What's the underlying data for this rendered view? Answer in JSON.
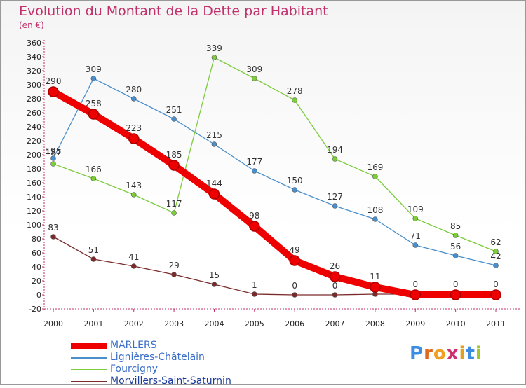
{
  "chart_data": {
    "type": "line",
    "title": "Evolution du Montant de la Dette par Habitant",
    "subtitle": "(en €)",
    "x": [
      2000,
      2001,
      2002,
      2003,
      2004,
      2005,
      2006,
      2007,
      2008,
      2009,
      2010,
      2011
    ],
    "ylim": [
      -20,
      360
    ],
    "yticks": [
      -20,
      0,
      20,
      40,
      60,
      80,
      100,
      120,
      140,
      160,
      180,
      200,
      220,
      240,
      260,
      280,
      300,
      320,
      340,
      360
    ],
    "grid": false,
    "legend_position": "bottom-left",
    "series": [
      {
        "name": "MARLERS",
        "color": "#ee0000",
        "values": [
          290,
          258,
          223,
          185,
          144,
          98,
          49,
          26,
          11,
          0,
          0,
          0
        ],
        "labels": [
          "290",
          "258",
          "223",
          "185",
          "144",
          "98",
          "49",
          "26",
          "11",
          "0",
          "0",
          "0"
        ]
      },
      {
        "name": "Lignières-Châtelain",
        "color": "#4a8fcb",
        "values": [
          195,
          309,
          280,
          251,
          215,
          177,
          150,
          127,
          108,
          71,
          56,
          42
        ],
        "labels": [
          "195",
          "309",
          "280",
          "251",
          "215",
          "177",
          "150",
          "127",
          "108",
          "71",
          "56",
          "42"
        ]
      },
      {
        "name": "Fourcigny",
        "color": "#7ccc3c",
        "values": [
          187,
          166,
          143,
          117,
          339,
          309,
          278,
          194,
          169,
          109,
          85,
          62
        ],
        "labels": [
          "187",
          "166",
          "143",
          "117",
          "339",
          "309",
          "278",
          "194",
          "169",
          "109",
          "85",
          "62"
        ]
      },
      {
        "name": "Morvillers-Saint-Saturnin",
        "color": "#7a2a2a",
        "values": [
          83,
          51,
          41,
          29,
          15,
          1,
          0,
          0,
          1,
          1,
          1,
          1
        ],
        "labels": [
          "83",
          "51",
          "41",
          "29",
          "15",
          "1",
          "0",
          "0",
          "",
          "",
          "",
          ""
        ]
      }
    ]
  },
  "logo": {
    "text": "Proxiti",
    "letter_colors": [
      "#3a8de0",
      "#e06a1a",
      "#f0a020",
      "#d03070",
      "#e0a020",
      "#3a8de0",
      "#a0c828"
    ]
  }
}
